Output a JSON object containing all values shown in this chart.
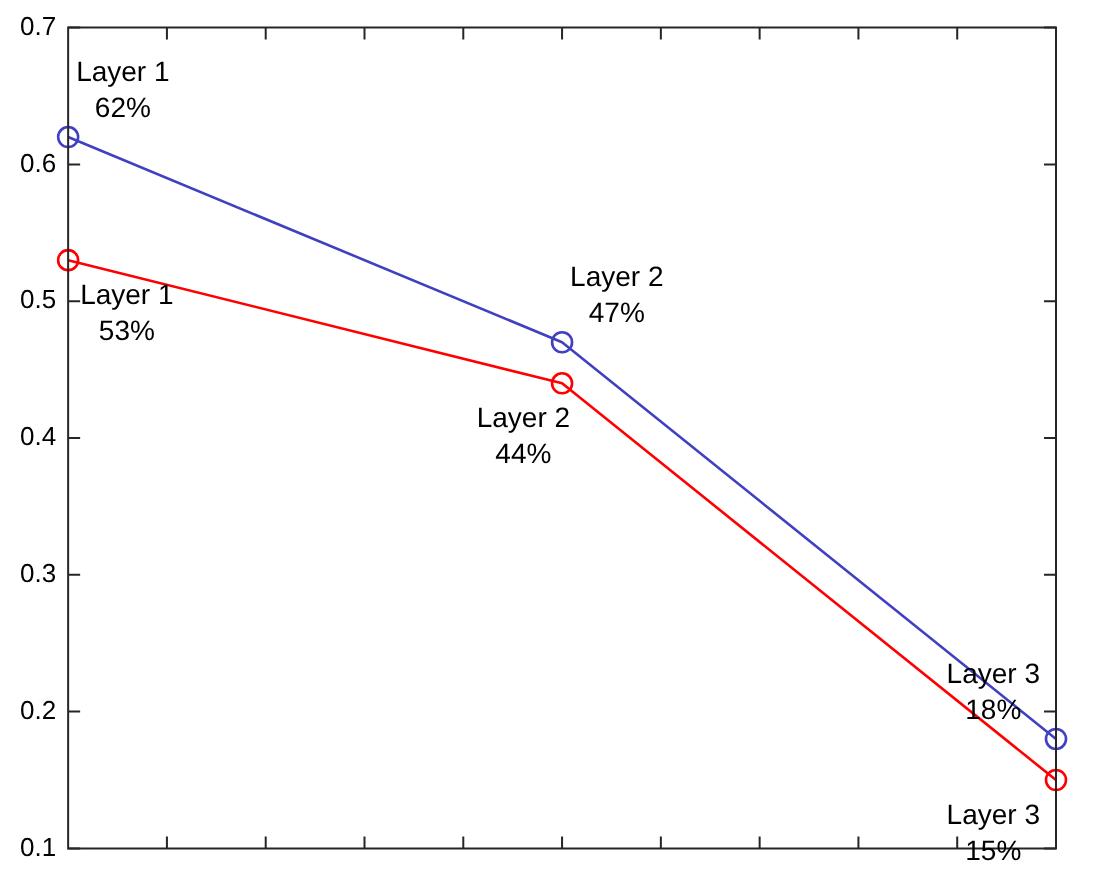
{
  "chart_data": {
    "type": "line",
    "categories": [
      null,
      null,
      null
    ],
    "series": [
      {
        "color": "#4040c0",
        "values": [
          0.62,
          0.47,
          0.18
        ],
        "value_labels": [
          "Layer 1\n62%",
          "Layer 2\n47%",
          "Layer 3\n18%"
        ]
      },
      {
        "color": "#ff0000",
        "values": [
          0.53,
          0.44,
          0.15
        ],
        "value_labels": [
          "Layer 1\n53%",
          "Layer 2\n44%",
          "Layer 3\n15%"
        ]
      }
    ],
    "ylim": [
      0.1,
      0.7
    ],
    "yticks": [
      0.1,
      0.2,
      0.3,
      0.4,
      0.5,
      0.6,
      0.7
    ],
    "tick_labels": "y",
    "grid": false,
    "legend": false,
    "marker": "circle",
    "line_style": "solid"
  }
}
